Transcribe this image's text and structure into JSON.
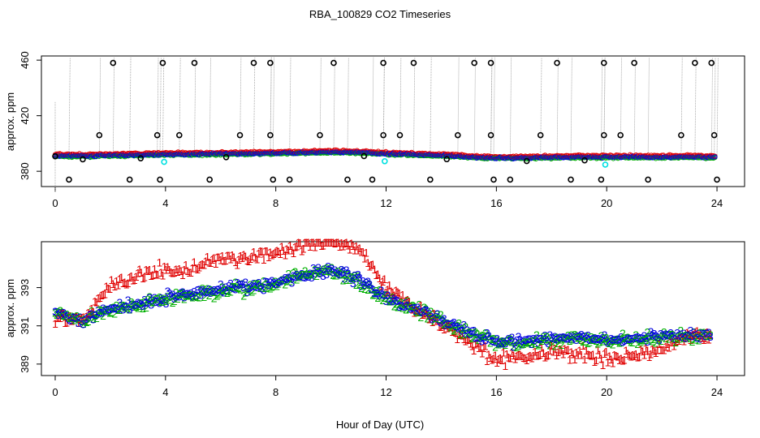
{
  "figure": {
    "title": "RBA_100829  CO2 Timeseries",
    "xlabel": "Hour of Day (UTC)"
  },
  "colors": {
    "series_1": "#e00000",
    "series_2": "#00b000",
    "series_3": "#0000e0",
    "cyan": "#00e0e0",
    "outlier": "#000000",
    "trace": "#999999"
  },
  "chart_data": [
    {
      "type": "scatter",
      "panel": "top",
      "ylabel": "approx. ppm",
      "xlim": [
        -0.5,
        25
      ],
      "ylim": [
        369,
        463
      ],
      "xticks": [
        0,
        4,
        8,
        12,
        16,
        20,
        24
      ],
      "yticks": [
        380,
        420,
        460
      ],
      "grid": false,
      "baseline": {
        "x": [
          0,
          1,
          2,
          3,
          4,
          5,
          6,
          7,
          8,
          9,
          10,
          11,
          12,
          13,
          14,
          15,
          16,
          17,
          18,
          19,
          20,
          21,
          22,
          23,
          23.9
        ],
        "y": [
          390.8,
          390.6,
          391,
          391.3,
          391.8,
          391.9,
          392.1,
          392.3,
          392.6,
          393,
          393.3,
          393.1,
          392.2,
          391.6,
          390.9,
          389.9,
          389.1,
          389.3,
          389.6,
          389.9,
          389.8,
          389.8,
          389.7,
          390,
          389.6
        ]
      },
      "outliers_high": [
        2.1,
        3.9,
        5.05,
        7.2,
        7.8,
        10.1,
        11.9,
        13.0,
        15.2,
        15.8,
        18.2,
        19.9,
        21.0,
        23.2,
        23.8
      ],
      "outliers_low": [
        0.5,
        2.7,
        3.8,
        5.6,
        7.9,
        8.5,
        10.6,
        11.5,
        13.6,
        15.9,
        16.5,
        18.7,
        19.8,
        21.5,
        24.0
      ],
      "outliers_mid": [
        1.6,
        3.7,
        4.5,
        6.7,
        7.8,
        9.6,
        11.9,
        12.5,
        14.6,
        15.8,
        17.6,
        19.9,
        20.5,
        22.7,
        23.9
      ],
      "outliers_near": [
        1.0,
        3.1,
        6.2,
        11.2,
        14.2,
        17.1,
        19.2
      ],
      "cyan_points": [
        3.95,
        11.95,
        19.95
      ]
    },
    {
      "type": "scatter",
      "panel": "bottom",
      "ylabel": "approx. ppm",
      "xlim": [
        -0.5,
        25
      ],
      "ylim": [
        388.4,
        395.4
      ],
      "xticks": [
        0,
        4,
        8,
        12,
        16,
        20,
        24
      ],
      "yticks": [
        389,
        391,
        393
      ],
      "grid": false,
      "series": [
        {
          "name": "1",
          "symbol": "1",
          "color": "#e00000"
        },
        {
          "name": "2",
          "symbol": "2",
          "color": "#00b000"
        },
        {
          "name": "3",
          "symbol": "3",
          "color": "#0000e0"
        }
      ],
      "trend": {
        "x": [
          0,
          1,
          2,
          3,
          4,
          5,
          6,
          7,
          8,
          9,
          10,
          11,
          12,
          13,
          14,
          15,
          16,
          17,
          18,
          19,
          20,
          21,
          22,
          23,
          23.8
        ],
        "y": [
          391.6,
          391.3,
          391.8,
          392.1,
          392.4,
          392.6,
          392.9,
          393,
          393.2,
          393.6,
          393.9,
          393.4,
          392.4,
          391.9,
          391.3,
          390.6,
          390.2,
          390.1,
          390.3,
          390.4,
          390.2,
          390.3,
          390.4,
          390.5,
          390.4
        ]
      },
      "red_offset": {
        "x": [
          0,
          1,
          2,
          3,
          4,
          5,
          6,
          7,
          8,
          9,
          10,
          11,
          12,
          13,
          14,
          15,
          16,
          17,
          18,
          19,
          20,
          21,
          22,
          23,
          23.8
        ],
        "y": [
          -0.2,
          0.1,
          1.3,
          1.5,
          1.5,
          1.5,
          1.6,
          1.6,
          1.6,
          1.6,
          1.6,
          1.7,
          0.6,
          0.1,
          -0.2,
          -0.4,
          -0.9,
          -0.8,
          -0.6,
          -0.8,
          -0.9,
          -0.8,
          -0.6,
          0,
          0
        ]
      },
      "step_hours": 0.06
    }
  ]
}
